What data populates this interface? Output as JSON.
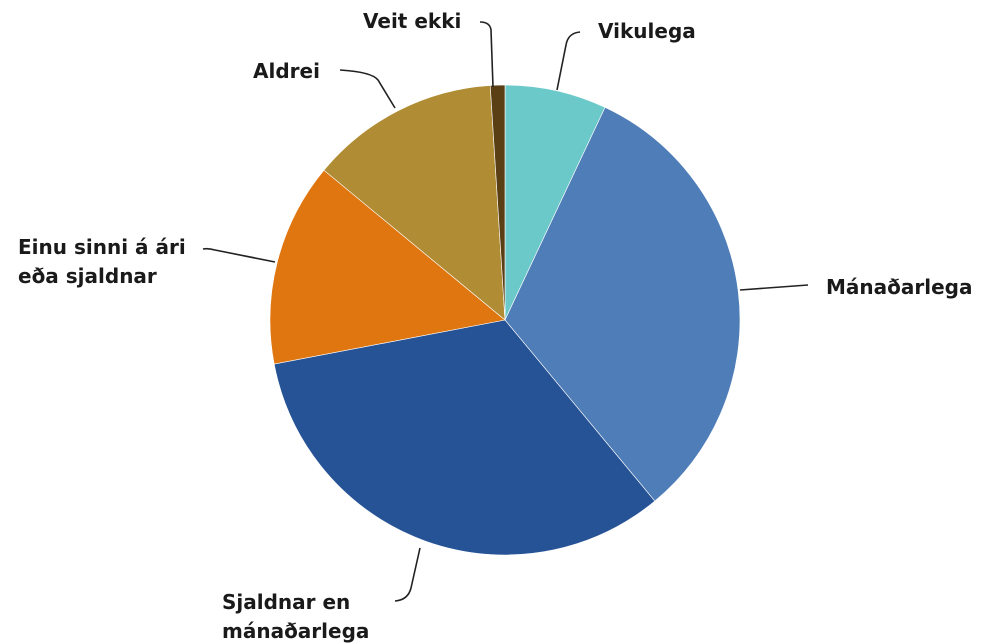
{
  "chart_data": {
    "type": "pie",
    "categories": [
      "Vikulega",
      "Mánaðarlega",
      "Sjaldnar en mánaðarlega",
      "Einu sinni á ári eða sjaldnar",
      "Aldrei",
      "Veit ekki"
    ],
    "values": [
      7,
      32,
      33,
      14,
      13,
      1
    ],
    "colors": [
      "#6cc9c9",
      "#4e7db8",
      "#265396",
      "#e0760f",
      "#b08d34",
      "#5a3e14"
    ]
  }
}
